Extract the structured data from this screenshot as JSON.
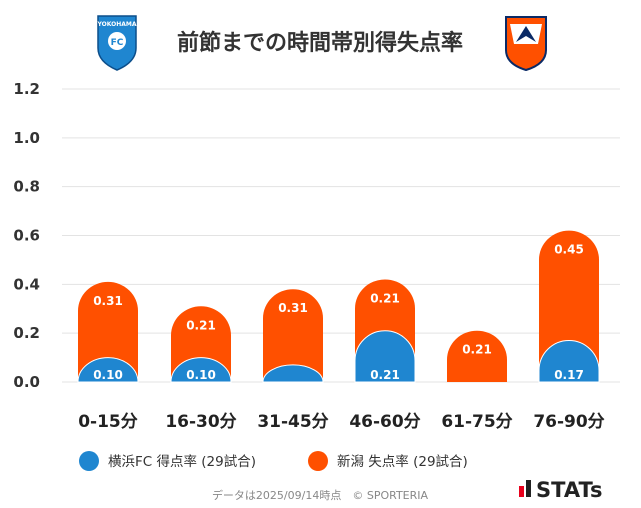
{
  "colors": {
    "home": "#1F86D0",
    "away": "#FF5000",
    "grid": "#E3E3E3",
    "text": "#333333"
  },
  "logos": {
    "home_text": "YOKOHAMA",
    "home_badge": "FC"
  },
  "legend": [
    {
      "label": "横浜FC 得点率 (29試合)",
      "color": "#1F86D0"
    },
    {
      "label": "新潟 失点率 (29試合)",
      "color": "#FF5000"
    }
  ],
  "footer": {
    "note": "データは2025/09/14時点　© SPORTERIA",
    "brand": "STATs"
  },
  "chart_data": {
    "type": "bar",
    "title": "前節までの時間帯別得失点率",
    "categories": [
      "0-15分",
      "16-30分",
      "31-45分",
      "46-60分",
      "61-75分",
      "76-90分"
    ],
    "series": [
      {
        "name": "横浜FC 得点率 (29試合)",
        "values": [
          0.1,
          0.1,
          0.07,
          0.21,
          0.0,
          0.17
        ],
        "labels": [
          "0.10",
          "0.10",
          "",
          "0.21",
          "",
          "0.17"
        ]
      },
      {
        "name": "新潟 失点率 (29試合)",
        "values": [
          0.31,
          0.21,
          0.31,
          0.21,
          0.21,
          0.45
        ],
        "labels": [
          "0.31",
          "0.21",
          "0.31",
          "0.21",
          "0.21",
          "0.45"
        ]
      }
    ],
    "stacked": true,
    "ylim": [
      0,
      1.2
    ],
    "yticks": [
      "1.2",
      "1.0",
      "0.8",
      "0.6",
      "0.4",
      "0.2",
      "0.0"
    ],
    "ytick_values": [
      1.2,
      1.0,
      0.8,
      0.6,
      0.4,
      0.2,
      0.0
    ],
    "xlabel": "",
    "ylabel": "",
    "grid": true,
    "legend_position": "bottom"
  }
}
